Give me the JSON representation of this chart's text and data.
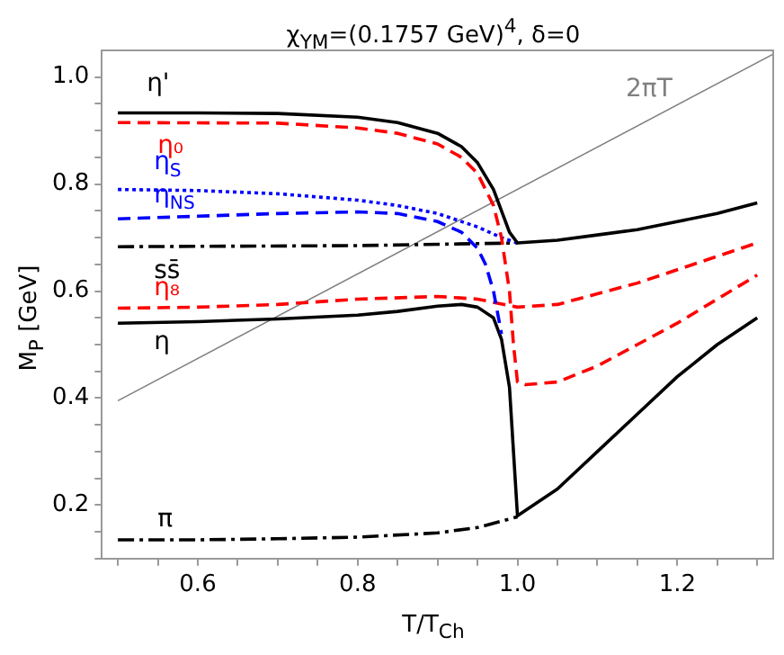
{
  "chart_data": {
    "type": "line",
    "title": "χ$_{YM}$=(0.1757 GeV)$^{4}$, δ=0",
    "xlabel": "T/T$_{Ch}$",
    "ylabel": "M$_{P}$ [GeV]",
    "xlim": [
      0.48,
      1.32
    ],
    "ylim": [
      0.1,
      1.05
    ],
    "xticks": [
      {
        "value": 0.5,
        "label": null
      },
      {
        "value": 0.55,
        "label": null
      },
      0.6,
      {
        "value": 0.65,
        "label": null
      },
      {
        "value": 0.7,
        "label": null
      },
      {
        "value": 0.75,
        "label": null
      },
      0.8,
      {
        "value": 0.85,
        "label": null
      },
      {
        "value": 0.9,
        "label": null
      },
      {
        "value": 0.95,
        "label": null
      },
      {
        "value": 1.0,
        "label": "1.0"
      },
      {
        "value": 1.05,
        "label": null
      },
      {
        "value": 1.1,
        "label": null
      },
      {
        "value": 1.15,
        "label": null
      },
      1.2,
      {
        "value": 1.25,
        "label": null
      },
      {
        "value": 1.3,
        "label": null
      }
    ],
    "yticks": [
      {
        "value": 0.1,
        "label": null
      },
      {
        "value": 0.15,
        "label": null
      },
      0.2,
      {
        "value": 0.25,
        "label": null
      },
      {
        "value": 0.3,
        "label": null
      },
      {
        "value": 0.35,
        "label": null
      },
      0.4,
      {
        "value": 0.45,
        "label": null
      },
      {
        "value": 0.5,
        "label": null
      },
      {
        "value": 0.55,
        "label": null
      },
      0.6,
      {
        "value": 0.65,
        "label": null
      },
      {
        "value": 0.7,
        "label": null
      },
      {
        "value": 0.75,
        "label": null
      },
      0.8,
      {
        "value": 0.85,
        "label": null
      },
      {
        "value": 0.9,
        "label": null
      },
      {
        "value": 0.95,
        "label": null
      },
      {
        "value": 1.0,
        "label": "1.0"
      }
    ],
    "grid": false,
    "legend": false,
    "marker": "none",
    "series": [
      {
        "name": "η'",
        "color": "#000000",
        "line_style": "solid",
        "x": [
          0.5,
          0.6,
          0.7,
          0.8,
          0.85,
          0.9,
          0.93,
          0.95,
          0.97,
          0.98,
          0.99,
          1.0,
          1.05,
          1.1,
          1.15,
          1.2,
          1.25,
          1.3
        ],
        "values": [
          0.933,
          0.933,
          0.932,
          0.925,
          0.915,
          0.895,
          0.87,
          0.84,
          0.79,
          0.75,
          0.71,
          0.69,
          0.695,
          0.705,
          0.715,
          0.73,
          0.745,
          0.765
        ]
      },
      {
        "name": "η₀",
        "color": "#ff0000",
        "line_style": "dashed",
        "x": [
          0.5,
          0.7,
          0.8,
          0.85,
          0.9,
          0.93,
          0.95,
          0.97,
          0.98,
          0.99,
          0.995,
          1.0,
          1.01,
          1.05,
          1.1,
          1.15,
          1.2,
          1.25,
          1.3
        ],
        "values": [
          0.915,
          0.914,
          0.905,
          0.895,
          0.875,
          0.85,
          0.82,
          0.76,
          0.7,
          0.6,
          0.5,
          0.43,
          0.425,
          0.43,
          0.46,
          0.5,
          0.54,
          0.585,
          0.63
        ]
      },
      {
        "name": "η$_{S}$",
        "color": "#0000ff",
        "line_style": "dotted",
        "x": [
          0.5,
          0.6,
          0.7,
          0.8,
          0.85,
          0.9,
          0.95,
          0.98,
          1.0
        ],
        "values": [
          0.79,
          0.788,
          0.782,
          0.77,
          0.76,
          0.745,
          0.72,
          0.7,
          0.69
        ]
      },
      {
        "name": "η$_{NS}$",
        "color": "#0000ff",
        "line_style": "dashed",
        "x": [
          0.5,
          0.6,
          0.7,
          0.8,
          0.85,
          0.9,
          0.93,
          0.95,
          0.96,
          0.97,
          0.98
        ],
        "values": [
          0.735,
          0.74,
          0.745,
          0.748,
          0.745,
          0.73,
          0.71,
          0.68,
          0.65,
          0.6,
          0.52
        ]
      },
      {
        "name": "ss̄",
        "color": "#000000",
        "line_style": "dashdot",
        "x": [
          0.5,
          0.8,
          1.0
        ],
        "values": [
          0.683,
          0.685,
          0.69
        ]
      },
      {
        "name": "η₈",
        "color": "#ff0000",
        "line_style": "dashed",
        "x": [
          0.5,
          0.6,
          0.7,
          0.8,
          0.9,
          0.95,
          1.0,
          1.05,
          1.1,
          1.15,
          1.2,
          1.25,
          1.3
        ],
        "values": [
          0.568,
          0.57,
          0.575,
          0.585,
          0.59,
          0.585,
          0.57,
          0.575,
          0.595,
          0.615,
          0.64,
          0.665,
          0.69
        ]
      },
      {
        "name": "η",
        "color": "#000000",
        "line_style": "solid",
        "x": [
          0.5,
          0.6,
          0.7,
          0.8,
          0.85,
          0.9,
          0.93,
          0.95,
          0.97,
          0.98,
          0.99,
          0.995,
          1.0,
          1.05,
          1.1,
          1.15,
          1.2,
          1.25,
          1.3
        ],
        "values": [
          0.54,
          0.543,
          0.548,
          0.555,
          0.562,
          0.572,
          0.575,
          0.57,
          0.55,
          0.51,
          0.42,
          0.3,
          0.18,
          0.23,
          0.3,
          0.37,
          0.44,
          0.5,
          0.55
        ]
      },
      {
        "name": "π",
        "color": "#000000",
        "line_style": "dashdot",
        "x": [
          0.5,
          0.6,
          0.7,
          0.8,
          0.9,
          0.95,
          1.0
        ],
        "values": [
          0.135,
          0.135,
          0.137,
          0.14,
          0.148,
          0.158,
          0.178
        ]
      },
      {
        "name": "2πT",
        "color": "#808080",
        "line_style": "solid",
        "x": [
          0.5,
          1.32
        ],
        "values": [
          0.395,
          1.043
        ]
      }
    ]
  }
}
